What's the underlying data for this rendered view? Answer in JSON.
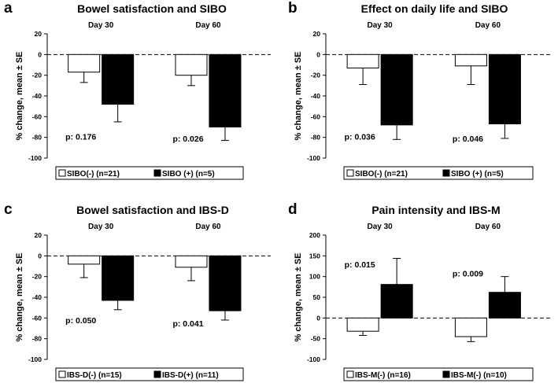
{
  "figure": {
    "colors": {
      "neg": "#ffffff",
      "pos": "#000000",
      "axis": "#000000"
    }
  },
  "chart_data": [
    {
      "type": "bar",
      "letter": "a",
      "title": "Bowel satisfaction and SIBO",
      "ylabel": "% change, mean ± SE",
      "ylim": [
        -100,
        20
      ],
      "yticks": [
        20,
        0,
        -20,
        -40,
        -60,
        -80,
        -100
      ],
      "categories": [
        "Day 30",
        "Day 60"
      ],
      "series": [
        {
          "name": "SIBO(-) (n=21)",
          "color": "#ffffff",
          "values": [
            -17,
            -20
          ],
          "errors": [
            10,
            10
          ]
        },
        {
          "name": "SIBO (+) (n=5)",
          "color": "#000000",
          "values": [
            -48,
            -70
          ],
          "errors": [
            17,
            13
          ]
        }
      ],
      "annotations": [
        "p: 0.176",
        "p: 0.026"
      ]
    },
    {
      "type": "bar",
      "letter": "b",
      "title": "Effect on daily life and SIBO",
      "ylabel": "% change, mean ± SE",
      "ylim": [
        -100,
        20
      ],
      "yticks": [
        20,
        0,
        -20,
        -40,
        -60,
        -80,
        -100
      ],
      "categories": [
        "Day 30",
        "Day 60"
      ],
      "series": [
        {
          "name": "SIBO(-) (n=21)",
          "color": "#ffffff",
          "values": [
            -13,
            -11
          ],
          "errors": [
            16,
            18
          ]
        },
        {
          "name": "SIBO (+) (n=5)",
          "color": "#000000",
          "values": [
            -68,
            -67
          ],
          "errors": [
            14,
            14
          ]
        }
      ],
      "annotations": [
        "p: 0.036",
        "p: 0.046"
      ]
    },
    {
      "type": "bar",
      "letter": "c",
      "title": "Bowel satisfaction and IBS-D",
      "ylabel": "% change, mean ± SE",
      "ylim": [
        -100,
        20
      ],
      "yticks": [
        20,
        0,
        -20,
        -40,
        -60,
        -80,
        -100
      ],
      "categories": [
        "Day 30",
        "Day 60"
      ],
      "series": [
        {
          "name": "IBS-D(-) (n=15)",
          "color": "#ffffff",
          "values": [
            -8,
            -11
          ],
          "errors": [
            13,
            13
          ]
        },
        {
          "name": "IBS-D(+) (n=11)",
          "color": "#000000",
          "values": [
            -43,
            -53
          ],
          "errors": [
            9,
            9
          ]
        }
      ],
      "annotations": [
        "p: 0.050",
        "p: 0.041"
      ]
    },
    {
      "type": "bar",
      "letter": "d",
      "title": "Pain intensity and IBS-M",
      "ylabel": "% change, mean ± SE",
      "ylim": [
        -100,
        200
      ],
      "yticks": [
        200,
        150,
        100,
        50,
        0,
        -50,
        -100
      ],
      "categories": [
        "Day 30",
        "Day 60"
      ],
      "series": [
        {
          "name": "IBS-M(-) (n=16)",
          "color": "#ffffff",
          "values": [
            -32,
            -45
          ],
          "errors": [
            10,
            12
          ]
        },
        {
          "name": "IBS-M(-) (n=10)",
          "color": "#000000",
          "values": [
            81,
            62
          ],
          "errors": [
            63,
            38
          ]
        }
      ],
      "annotations": [
        "p: 0.015",
        "p: 0.009"
      ]
    }
  ]
}
